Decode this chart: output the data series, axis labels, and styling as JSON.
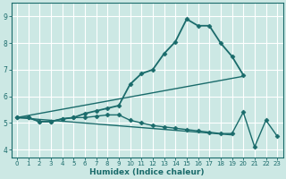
{
  "xlabel": "Humidex (Indice chaleur)",
  "ylabel": "",
  "background_color": "#cce8e4",
  "grid_color": "#ffffff",
  "line_color": "#1a6b6b",
  "xlim": [
    -0.5,
    23.5
  ],
  "ylim": [
    3.7,
    9.5
  ],
  "yticks": [
    4,
    5,
    6,
    7,
    8,
    9
  ],
  "xticks": [
    0,
    1,
    2,
    3,
    4,
    5,
    6,
    7,
    8,
    9,
    10,
    11,
    12,
    13,
    14,
    15,
    16,
    17,
    18,
    19,
    20,
    21,
    22,
    23
  ],
  "series": [
    {
      "x": [
        0,
        1,
        2,
        3,
        4,
        5,
        6,
        7,
        8,
        9,
        10,
        11,
        12,
        13,
        14,
        15,
        16,
        17,
        18,
        19,
        20
      ],
      "y": [
        5.2,
        5.2,
        5.05,
        5.05,
        5.15,
        5.2,
        5.35,
        5.45,
        5.55,
        5.65,
        6.45,
        6.85,
        7.0,
        7.6,
        8.05,
        8.9,
        8.65,
        8.65,
        8.0,
        7.5,
        6.8
      ],
      "marker": "D",
      "markersize": 2.5,
      "linewidth": 1.3
    },
    {
      "x": [
        0,
        20
      ],
      "y": [
        5.2,
        6.75
      ],
      "marker": null,
      "markersize": 0,
      "linewidth": 1.0
    },
    {
      "x": [
        0,
        1,
        2,
        3,
        4,
        5,
        6,
        7,
        8,
        9,
        10,
        11,
        12,
        13,
        14,
        15,
        16,
        17,
        18,
        19,
        20,
        21,
        22,
        23
      ],
      "y": [
        5.2,
        5.2,
        5.05,
        5.05,
        5.15,
        5.2,
        5.2,
        5.25,
        5.3,
        5.3,
        5.1,
        5.0,
        4.9,
        4.85,
        4.8,
        4.75,
        4.7,
        4.65,
        4.6,
        4.6,
        5.4,
        4.1,
        5.1,
        4.5
      ],
      "marker": "D",
      "markersize": 2.5,
      "linewidth": 1.0
    },
    {
      "x": [
        0,
        19
      ],
      "y": [
        5.2,
        4.55
      ],
      "marker": null,
      "markersize": 0,
      "linewidth": 1.0
    }
  ]
}
